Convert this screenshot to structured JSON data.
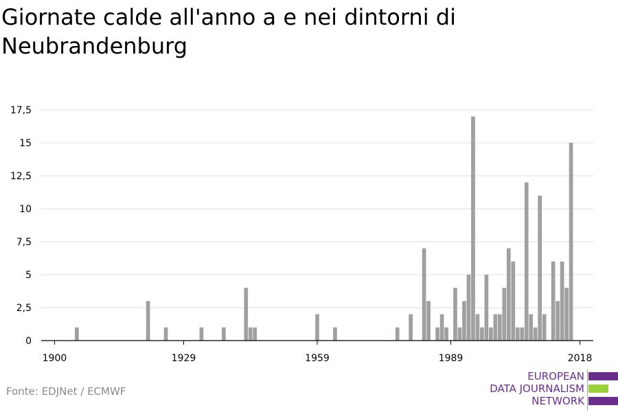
{
  "title": "Giornate calde all'anno a e nei dintorni di Neubrandenburg",
  "source": "Fonte: EDJNet / ECMWF",
  "logo": {
    "line1": "EUROPEAN",
    "line2": "DATA JOURNALISM",
    "line3": "NETWORK",
    "color_primary": "#6b2d8c",
    "color_accent": "#9bd13b"
  },
  "colors": {
    "bar": "#a0a0a0",
    "grid": "#dddddd",
    "axis": "#000000"
  },
  "chart_data": {
    "type": "bar",
    "title": "Giornate calde all'anno a e nei dintorni di Neubrandenburg",
    "xlabel": "",
    "ylabel": "",
    "xlim": [
      1897,
      2021
    ],
    "ylim": [
      0,
      17.5
    ],
    "x_ticks": [
      1900,
      1929,
      1959,
      1989,
      2018
    ],
    "y_ticks": [
      "0",
      "2,5",
      "5",
      "7,5",
      "10",
      "12,5",
      "15",
      "17,5"
    ],
    "y_tick_values": [
      0,
      2.5,
      5,
      7.5,
      10,
      12.5,
      15,
      17.5
    ],
    "grid": true,
    "x": [
      1905,
      1921,
      1925,
      1933,
      1938,
      1943,
      1944,
      1945,
      1959,
      1963,
      1977,
      1980,
      1983,
      1984,
      1986,
      1987,
      1988,
      1990,
      1991,
      1992,
      1993,
      1994,
      1995,
      1996,
      1997,
      1998,
      1999,
      2000,
      2001,
      2002,
      2003,
      2004,
      2005,
      2006,
      2007,
      2008,
      2009,
      2010,
      2012,
      2013,
      2014,
      2015,
      2016,
      2017,
      2018
    ],
    "values": [
      1,
      3,
      1,
      1,
      1,
      4,
      1,
      1,
      2,
      1,
      1,
      2,
      7,
      3,
      1,
      2,
      1,
      4,
      1,
      3,
      5,
      17,
      2,
      1,
      5,
      1,
      2,
      2,
      4,
      7,
      6,
      1,
      1,
      12,
      2,
      1,
      11,
      2,
      6,
      3,
      6,
      4,
      15,
      0,
      0
    ]
  }
}
